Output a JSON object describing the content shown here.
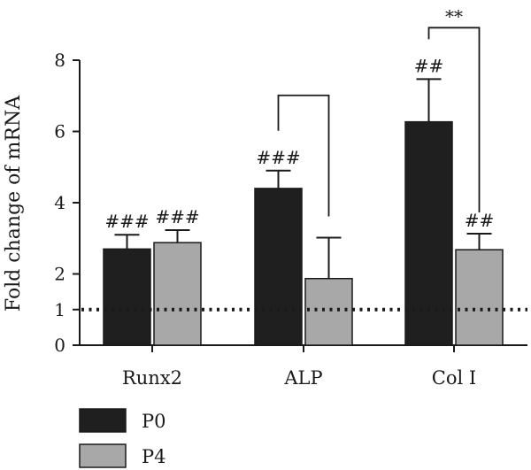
{
  "chart_data": {
    "type": "bar",
    "title": "",
    "xlabel": "",
    "ylabel": "Fold change of mRNA",
    "ylim": [
      0,
      8
    ],
    "yticks": [
      0,
      1,
      2,
      4,
      6,
      8
    ],
    "reference_line": {
      "y": 1,
      "style": "dotted"
    },
    "categories": [
      "Runx2",
      "ALP",
      "Col I"
    ],
    "series": [
      {
        "name": "P0",
        "color": "#1f1f1f",
        "values": [
          2.7,
          4.4,
          6.27
        ],
        "errors": [
          0.4,
          0.5,
          1.2
        ],
        "annotations": [
          "###",
          "###",
          "##"
        ]
      },
      {
        "name": "P4",
        "color": "#a8a8a8",
        "values": [
          2.88,
          1.87,
          2.68
        ],
        "errors": [
          0.35,
          1.15,
          0.45
        ],
        "annotations": [
          "###",
          "",
          "##"
        ]
      }
    ],
    "comparisons": [
      {
        "category": "ALP",
        "label": ""
      },
      {
        "category": "Col I",
        "label": "**"
      }
    ],
    "legend": {
      "position": "bottom-left",
      "entries": [
        "P0",
        "P4"
      ]
    },
    "grid": false
  }
}
